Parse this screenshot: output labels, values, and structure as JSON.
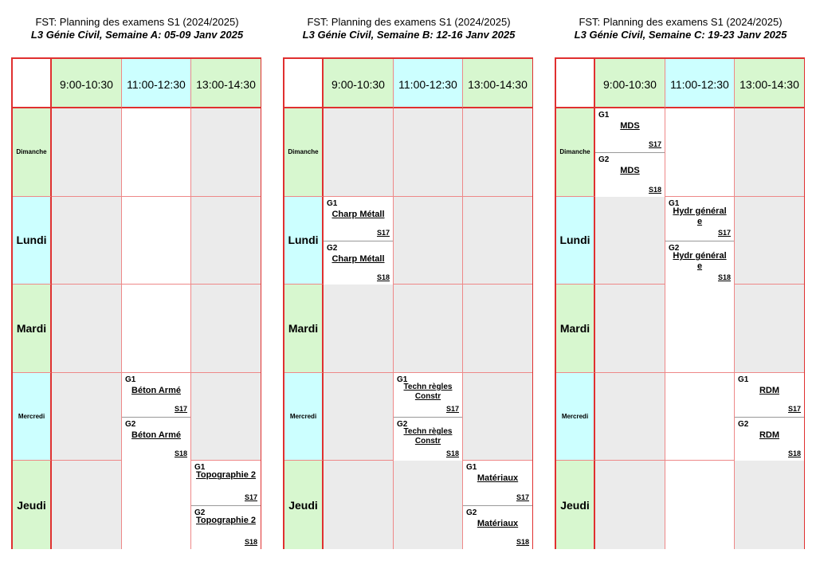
{
  "weeks": [
    {
      "title": "FST: Planning des examens S1 (2024/2025)",
      "subtitle": "L3 Génie Civil, Semaine A: 05-09 Janv 2025",
      "slots": [
        "9:00-10:30",
        "11:00-12:30",
        "13:00-14:30"
      ],
      "days": [
        "Dimanche",
        "Lundi",
        "Mardi",
        "Mercredi",
        "Jeudi"
      ],
      "exams": [
        {
          "day": "Mercredi",
          "slot": "11:00-12:30",
          "g1": "G1",
          "g1_subject": "Béton Armé",
          "g1_room": "S17",
          "g2": "G2",
          "g2_subject": "Béton Armé",
          "g2_room": "S18"
        },
        {
          "day": "Jeudi",
          "slot": "13:00-14:30",
          "g1": "G1",
          "g1_subject": "Topographie 2",
          "g1_room": "S17",
          "g2": "G2",
          "g2_subject": "Topographie 2",
          "g2_room": "S18"
        }
      ]
    },
    {
      "title": "FST: Planning des examens S1 (2024/2025)",
      "subtitle": "L3 Génie Civil, Semaine B: 12-16 Janv 2025",
      "slots": [
        "9:00-10:30",
        "11:00-12:30",
        "13:00-14:30"
      ],
      "days": [
        "Dimanche",
        "Lundi",
        "Mardi",
        "Mercredi",
        "Jeudi"
      ],
      "exams": [
        {
          "day": "Lundi",
          "slot": "9:00-10:30",
          "g1": "G1",
          "g1_subject": "Charp Métall",
          "g1_room": "S17",
          "g2": "G2",
          "g2_subject": "Charp Métall",
          "g2_room": "S18"
        },
        {
          "day": "Mercredi",
          "slot": "11:00-12:30",
          "g1": "G1",
          "g1_subject": "Techn  règles Constr",
          "g1_room": "S17",
          "g2": "G2",
          "g2_subject": "Techn  règles Constr",
          "g2_room": "S18"
        },
        {
          "day": "Jeudi",
          "slot": "13:00-14:30",
          "g1": "G1",
          "g1_subject": "Matériaux",
          "g1_room": "S17",
          "g2": "G2",
          "g2_subject": "Matériaux",
          "g2_room": "S18"
        }
      ]
    },
    {
      "title": "FST: Planning des examens S1 (2024/2025)",
      "subtitle": "L3 Génie Civil, Semaine C: 19-23 Janv 2025",
      "slots": [
        "9:00-10:30",
        "11:00-12:30",
        "13:00-14:30"
      ],
      "days": [
        "Dimanche",
        "Lundi",
        "Mardi",
        "Mercredi",
        "Jeudi"
      ],
      "exams": [
        {
          "day": "Dimanche",
          "slot": "9:00-10:30",
          "g1": "G1",
          "g1_subject": "MDS",
          "g1_room": "S17",
          "g2": "G2",
          "g2_subject": "MDS",
          "g2_room": "S18"
        },
        {
          "day": "Lundi",
          "slot": "11:00-12:30",
          "g1": "G1",
          "g1_subject": "Hydr général e",
          "g1_room": "S17",
          "g2": "G2",
          "g2_subject": "Hydr général e",
          "g2_room": "S18"
        },
        {
          "day": "Mercredi",
          "slot": "13:00-14:30",
          "g1": "G1",
          "g1_subject": "RDM",
          "g1_room": "S17",
          "g2": "G2",
          "g2_subject": "RDM",
          "g2_room": "S18"
        }
      ]
    }
  ],
  "colors": {
    "border": "#e03030",
    "header_green": "#d7f7cf",
    "header_cyan": "#ccffff",
    "empty_cell": "#ebebeb"
  }
}
